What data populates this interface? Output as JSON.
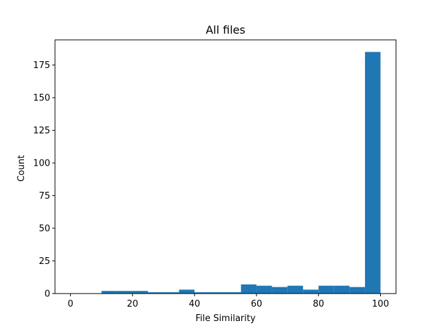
{
  "chart_data": {
    "type": "bar",
    "title": "All files",
    "xlabel": "File Similarity",
    "ylabel": "Count",
    "bin_edges": [
      0,
      5,
      10,
      15,
      20,
      25,
      30,
      35,
      40,
      45,
      50,
      55,
      60,
      65,
      70,
      75,
      80,
      85,
      90,
      95,
      100
    ],
    "values": [
      0,
      0,
      2,
      2,
      2,
      1,
      1,
      3,
      1,
      1,
      1,
      7,
      6,
      5,
      6,
      3,
      6,
      6,
      5,
      185
    ],
    "xlim": [
      -5,
      105
    ],
    "ylim": [
      0,
      194.25
    ],
    "xticks": [
      0,
      20,
      40,
      60,
      80,
      100
    ],
    "yticks": [
      0,
      25,
      50,
      75,
      100,
      125,
      150,
      175
    ],
    "grid": false,
    "colors": {
      "bar": "#1f77b4",
      "axis": "#000000",
      "background": "#ffffff"
    }
  }
}
